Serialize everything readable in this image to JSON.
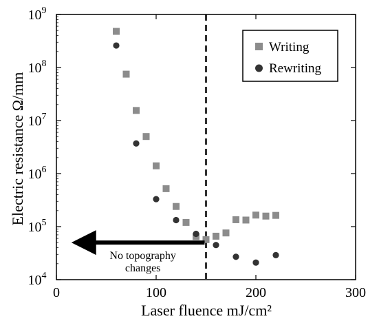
{
  "chart_data": {
    "type": "scatter",
    "xlabel": "Laser fluence    mJ/cm²",
    "ylabel": "Electric resistance    Ω/mm",
    "xlim": [
      0,
      300
    ],
    "ylim": [
      10000,
      1000000000
    ],
    "yscale": "log",
    "x_ticks": [
      "0",
      "100",
      "200",
      "300"
    ],
    "y_ticks": [
      {
        "base": "10",
        "exp": "4"
      },
      {
        "base": "10",
        "exp": "5"
      },
      {
        "base": "10",
        "exp": "6"
      },
      {
        "base": "10",
        "exp": "7"
      },
      {
        "base": "10",
        "exp": "8"
      },
      {
        "base": "10",
        "exp": "9"
      }
    ],
    "grid": false,
    "legend_position": "top-right",
    "series": [
      {
        "name": "Writing",
        "marker": "square",
        "color": "#8c8c8c",
        "points": [
          [
            60,
            480000000
          ],
          [
            70,
            75000000
          ],
          [
            80,
            15500000
          ],
          [
            90,
            5000000
          ],
          [
            100,
            1400000
          ],
          [
            110,
            520000
          ],
          [
            120,
            240000
          ],
          [
            130,
            120000
          ],
          [
            140,
            65000
          ],
          [
            150,
            57000
          ],
          [
            160,
            66000
          ],
          [
            170,
            76000
          ],
          [
            180,
            135000
          ],
          [
            190,
            133000
          ],
          [
            200,
            165000
          ],
          [
            210,
            158000
          ],
          [
            220,
            163000
          ]
        ]
      },
      {
        "name": "Rewriting",
        "marker": "circle",
        "color": "#333333",
        "points": [
          [
            60,
            260000000
          ],
          [
            80,
            3700000
          ],
          [
            100,
            330000
          ],
          [
            120,
            133000
          ],
          [
            140,
            73000
          ],
          [
            160,
            45000
          ],
          [
            180,
            27000
          ],
          [
            200,
            21000
          ],
          [
            220,
            29000
          ]
        ]
      }
    ],
    "threshold_line": {
      "x": 150,
      "style": "dashed"
    },
    "annotation": {
      "lines": [
        "No topography",
        "changes"
      ],
      "arrow_from_x": 150,
      "arrow_to_x": 15,
      "arrow_y": 50000
    }
  }
}
